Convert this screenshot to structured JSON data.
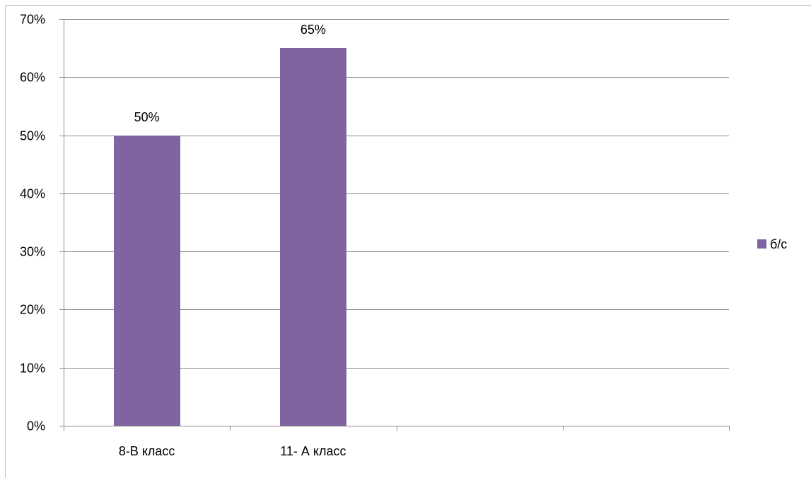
{
  "chart_data": {
    "type": "bar",
    "categories": [
      "8-В класс",
      "11- А класс",
      "",
      ""
    ],
    "series": [
      {
        "name": "б/с",
        "values": [
          50,
          65,
          null,
          null
        ],
        "data_labels": [
          "50%",
          "65%",
          "",
          ""
        ],
        "color": "#8064a2"
      }
    ],
    "ylim": [
      0,
      70
    ],
    "yticks": [
      0,
      10,
      20,
      30,
      40,
      50,
      60,
      70
    ],
    "ytick_labels": [
      "0%",
      "10%",
      "20%",
      "30%",
      "40%",
      "50%",
      "60%",
      "70%"
    ],
    "grid": true,
    "legend_position": "right",
    "title": "",
    "xlabel": "",
    "ylabel": ""
  }
}
